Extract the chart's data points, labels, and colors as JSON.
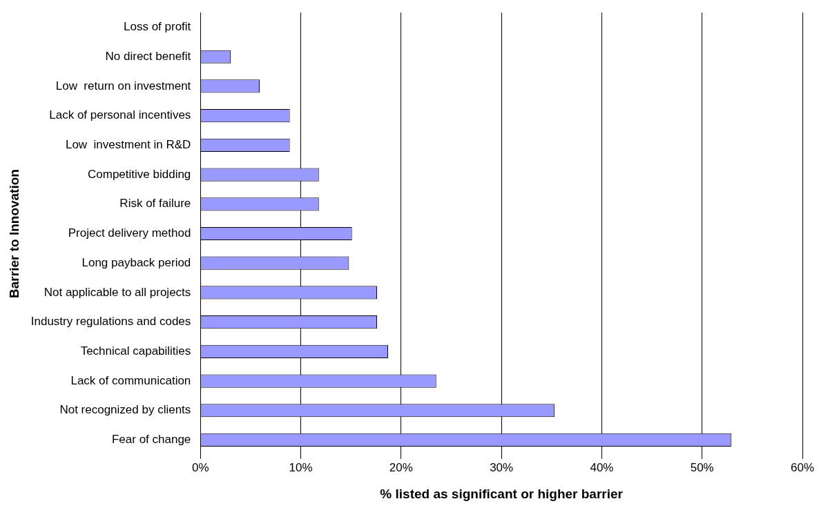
{
  "chart_data": {
    "type": "bar",
    "orientation": "horizontal",
    "categories": [
      "Loss of profit",
      "No direct benefit",
      "Low  return on investment",
      "Lack of personal incentives",
      "Low  investment in R&D",
      "Competitive bidding",
      "Risk of failure",
      "Project delivery method",
      "Long payback period",
      "Not applicable to all projects",
      "Industry regulations and codes",
      "Technical capabilities",
      "Lack of communication",
      "Not recognized by clients",
      "Fear of change"
    ],
    "values": [
      0,
      3,
      5.9,
      8.9,
      8.9,
      11.8,
      11.8,
      15.1,
      14.8,
      17.6,
      17.6,
      18.7,
      23.5,
      35.3,
      52.9
    ],
    "color": "#9999ff",
    "xlim": [
      0,
      60
    ],
    "xticks": [
      {
        "value": 0,
        "label": "0%"
      },
      {
        "value": 10,
        "label": "10%"
      },
      {
        "value": 20,
        "label": "20%"
      },
      {
        "value": 30,
        "label": "30%"
      },
      {
        "value": 40,
        "label": "40%"
      },
      {
        "value": 50,
        "label": "50%"
      },
      {
        "value": 60,
        "label": "60%"
      }
    ],
    "xlabel": "% listed as significant or higher barrier",
    "ylabel": "Barrier to Innovation",
    "grid": "x",
    "legend": false
  }
}
